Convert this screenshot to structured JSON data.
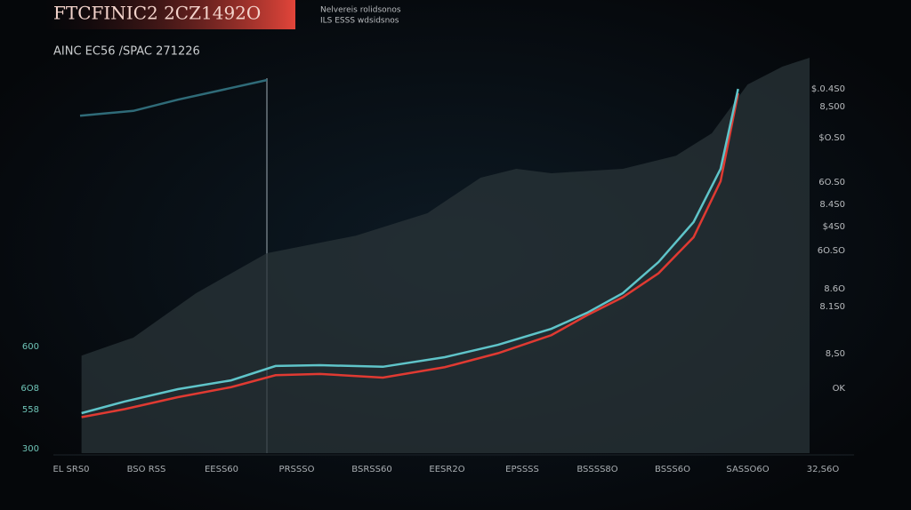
{
  "header": {
    "title": "FTCFINIC2 2CZ1492O",
    "subtitle": [
      "Nelvereis rolidsonos",
      "ILS ESSS wdsidsnos"
    ]
  },
  "chart_data": {
    "type": "line",
    "title": "AINC EC56 /SPAC 271226",
    "xlim": [
      0,
      100
    ],
    "ylim": [
      0,
      100
    ],
    "series": [
      {
        "name": null,
        "kind": "area",
        "color": "#2a3438",
        "x": [
          0.2,
          7.3,
          15.9,
          25.6,
          37.8,
          47.6,
          54.9,
          59.8,
          64.6,
          74.4,
          81.7,
          86.6,
          91.5,
          96.3,
          100
        ],
        "values": [
          24.4,
          28.9,
          40,
          50,
          54.4,
          60,
          68.9,
          71.1,
          70,
          71.1,
          74.4,
          80,
          92.2,
          96.7,
          98.9
        ]
      },
      {
        "name": null,
        "kind": "line",
        "color": "#2f6b78",
        "x": [
          0,
          7.3,
          13.4,
          25.6
        ],
        "values": [
          84.4,
          85.6,
          88.4,
          93.3
        ]
      },
      {
        "name": null,
        "kind": "line",
        "color": "#e03a32",
        "x": [
          0.2,
          6.1,
          13.4,
          20.7,
          26.8,
          32.9,
          41.5,
          50,
          57.3,
          64.6,
          69.5,
          74.4,
          79.3,
          84.1,
          87.8,
          90.2
        ],
        "values": [
          9,
          11,
          14,
          16.5,
          19.5,
          19.8,
          18.9,
          21.5,
          25,
          29.5,
          34.5,
          39,
          45,
          54,
          68,
          90
        ]
      },
      {
        "name": null,
        "kind": "line",
        "color": "#5fc4c9",
        "x": [
          0.2,
          6.1,
          13.4,
          20.7,
          26.8,
          32.9,
          41.5,
          50,
          57.3,
          64.6,
          69.5,
          74.4,
          79.3,
          84.1,
          87.8,
          90.2
        ],
        "values": [
          10,
          12.9,
          16,
          18.2,
          21.8,
          22,
          21.6,
          24,
          27.1,
          31.1,
          35.1,
          40,
          47.8,
          57.8,
          71.1,
          91.1
        ]
      }
    ]
  },
  "left_labels": [
    "600",
    "6O8",
    "558",
    "300"
  ],
  "right_labels": [
    "$.0.4S0",
    "8,S00",
    "$O.S0",
    "6O.S0",
    "8.4S0",
    "$4S0",
    "6O.SO",
    "8.6O",
    "8.1S0",
    "8,S0",
    "OK"
  ],
  "x_labels": [
    "EL SRS0",
    "BSO RSS",
    "EESS60",
    "PRSSSO",
    "BSRSS60",
    "EESR2O",
    "EPSSSS",
    "BSSSS8O",
    "BSSS6O",
    "SASSO6O",
    "32,S6O"
  ]
}
